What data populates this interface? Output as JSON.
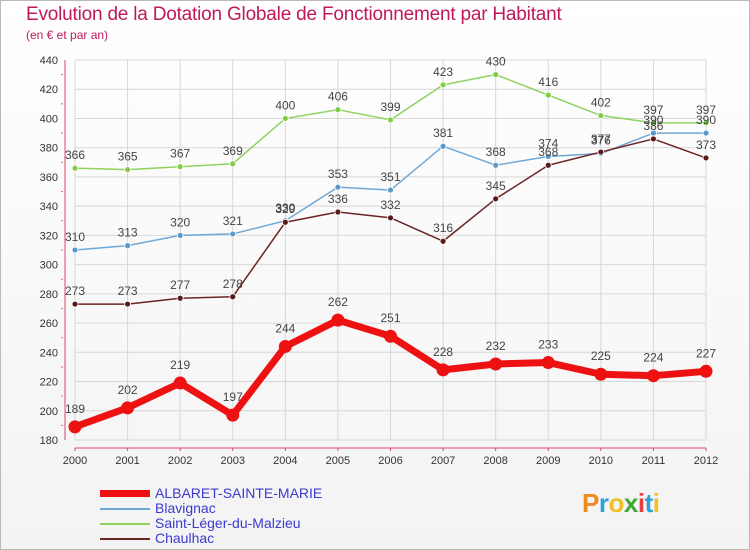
{
  "title": "Evolution de la Dotation Globale de Fonctionnement par Habitant",
  "subtitle": "(en € et par an)",
  "logo": {
    "text": "Proxiti",
    "letter_colors": [
      "#f08a1e",
      "#2f9fd8",
      "#f0c020",
      "#3aaa35",
      "#e83e3e",
      "#2f9fd8",
      "#f0c020"
    ]
  },
  "chart_data": {
    "type": "line",
    "title": "Evolution de la Dotation Globale de Fonctionnement par Habitant",
    "ylabel": "(en € et par an)",
    "x": [
      "2000",
      "2001",
      "2002",
      "2003",
      "2004",
      "2005",
      "2006",
      "2007",
      "2008",
      "2009",
      "2010",
      "2011",
      "2012"
    ],
    "ylim": [
      180,
      440
    ],
    "yticks": [
      180,
      200,
      220,
      240,
      260,
      280,
      300,
      320,
      340,
      360,
      380,
      400,
      420,
      440
    ],
    "grid": true,
    "series": [
      {
        "name": "Saint-Léger-du-Malzieu",
        "color": "#8fd260",
        "point_color": "#7fcc45",
        "width": 1.5,
        "values": [
          366,
          365,
          367,
          369,
          400,
          406,
          399,
          423,
          430,
          416,
          402,
          397,
          397
        ]
      },
      {
        "name": "Blavignac",
        "color": "#6fa8d6",
        "point_color": "#5a9acb",
        "width": 1.5,
        "values": [
          310,
          313,
          320,
          321,
          330,
          353,
          351,
          381,
          368,
          374,
          376,
          390,
          390
        ]
      },
      {
        "name": "Chaulhac",
        "color": "#6b2424",
        "point_color": "#5a1a1a",
        "width": 1.5,
        "values": [
          273,
          273,
          277,
          278,
          329,
          336,
          332,
          316,
          345,
          368,
          377,
          386,
          373
        ]
      },
      {
        "name": "ALBARET-SAINTE-MARIE",
        "color": "#ee1111",
        "point_color": "#ee1111",
        "width": 7,
        "values": [
          189,
          202,
          219,
          197,
          244,
          262,
          251,
          228,
          232,
          233,
          225,
          224,
          227
        ]
      }
    ],
    "legend_order": [
      "ALBARET-SAINTE-MARIE",
      "Blavignac",
      "Saint-Léger-du-Malzieu",
      "Chaulhac"
    ]
  }
}
